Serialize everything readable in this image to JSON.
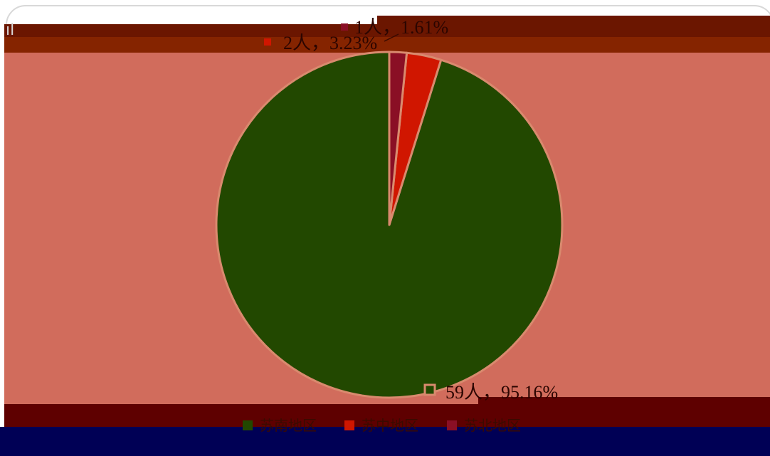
{
  "chart_data": {
    "type": "pie",
    "title": "",
    "start_angle_deg": 0,
    "direction": "counterclockwise",
    "slices": [
      {
        "label": "",
        "count": 59,
        "percent": 95.16,
        "display": "59人，95.16%",
        "color": "#224800"
      },
      {
        "label": "",
        "count": 2,
        "percent": 3.23,
        "display": "2人，3.23%",
        "color": "#d01600"
      },
      {
        "label": "",
        "count": 1,
        "percent": 1.61,
        "display": "1人，1.61%",
        "color": "#8a0f25"
      }
    ],
    "legend": {
      "position": "bottom",
      "items": [
        {
          "text": "苏南地区",
          "color": "#224800"
        },
        {
          "text": "苏中地区",
          "color": "#d01600"
        },
        {
          "text": "苏北地区",
          "color": "#8a0f25"
        }
      ]
    }
  },
  "colors": {
    "background_band": "#d16c5c",
    "slice_border": "#d98a6e",
    "navy_band": "#000055"
  }
}
